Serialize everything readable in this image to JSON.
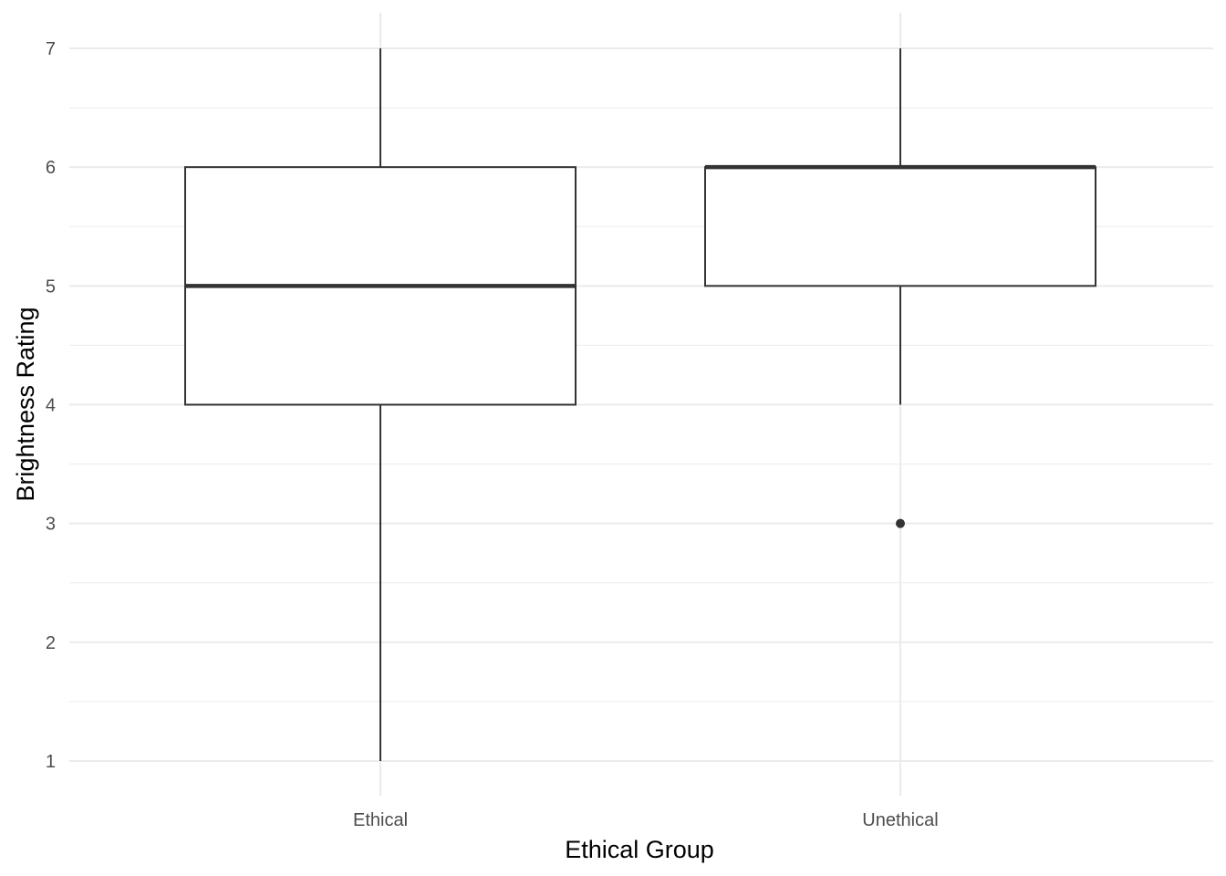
{
  "chart_data": {
    "type": "boxplot",
    "title": "",
    "xlabel": "Ethical Group",
    "ylabel": "Brightness Rating",
    "categories": [
      "Ethical",
      "Unethical"
    ],
    "ylim": [
      1,
      7
    ],
    "yticks": [
      "1",
      "2",
      "3",
      "4",
      "5",
      "6",
      "7"
    ],
    "grid": true,
    "boxes": [
      {
        "category": "Ethical",
        "whisker_low": 1,
        "q1": 4,
        "median": 5,
        "q3": 6,
        "whisker_high": 7,
        "outliers": []
      },
      {
        "category": "Unethical",
        "whisker_low": 4,
        "q1": 5,
        "median": 6,
        "q3": 6,
        "whisker_high": 7,
        "outliers": [
          3
        ]
      }
    ],
    "colors": {
      "box_stroke": "#333333",
      "box_fill": "#ffffff",
      "grid": "#ebebeb",
      "tick_text": "#4d4d4d"
    }
  }
}
